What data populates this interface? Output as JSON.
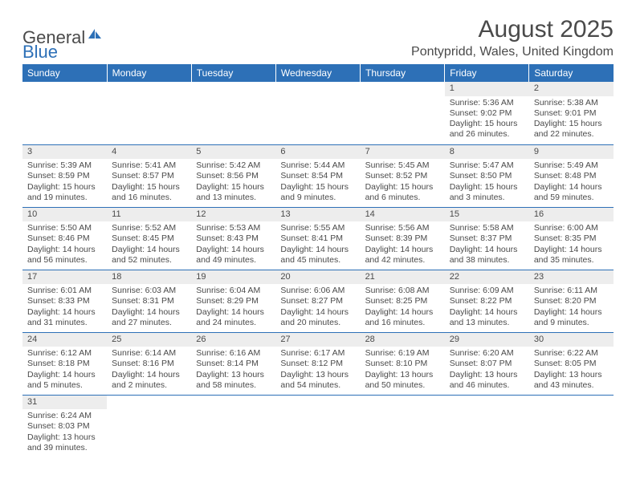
{
  "brand": {
    "part1": "General",
    "part2": "Blue"
  },
  "title": "August 2025",
  "location": "Pontypridd, Wales, United Kingdom",
  "colors": {
    "header_bg": "#2d70b7",
    "header_text": "#ffffff",
    "daynum_bg": "#ededed",
    "row_divider": "#2d70b7",
    "text": "#4a4a4a",
    "background": "#ffffff"
  },
  "weekdays": [
    "Sunday",
    "Monday",
    "Tuesday",
    "Wednesday",
    "Thursday",
    "Friday",
    "Saturday"
  ],
  "weeks": [
    [
      null,
      null,
      null,
      null,
      null,
      {
        "n": "1",
        "sr": "5:36 AM",
        "ss": "9:02 PM",
        "dl": "15 hours and 26 minutes."
      },
      {
        "n": "2",
        "sr": "5:38 AM",
        "ss": "9:01 PM",
        "dl": "15 hours and 22 minutes."
      }
    ],
    [
      {
        "n": "3",
        "sr": "5:39 AM",
        "ss": "8:59 PM",
        "dl": "15 hours and 19 minutes."
      },
      {
        "n": "4",
        "sr": "5:41 AM",
        "ss": "8:57 PM",
        "dl": "15 hours and 16 minutes."
      },
      {
        "n": "5",
        "sr": "5:42 AM",
        "ss": "8:56 PM",
        "dl": "15 hours and 13 minutes."
      },
      {
        "n": "6",
        "sr": "5:44 AM",
        "ss": "8:54 PM",
        "dl": "15 hours and 9 minutes."
      },
      {
        "n": "7",
        "sr": "5:45 AM",
        "ss": "8:52 PM",
        "dl": "15 hours and 6 minutes."
      },
      {
        "n": "8",
        "sr": "5:47 AM",
        "ss": "8:50 PM",
        "dl": "15 hours and 3 minutes."
      },
      {
        "n": "9",
        "sr": "5:49 AM",
        "ss": "8:48 PM",
        "dl": "14 hours and 59 minutes."
      }
    ],
    [
      {
        "n": "10",
        "sr": "5:50 AM",
        "ss": "8:46 PM",
        "dl": "14 hours and 56 minutes."
      },
      {
        "n": "11",
        "sr": "5:52 AM",
        "ss": "8:45 PM",
        "dl": "14 hours and 52 minutes."
      },
      {
        "n": "12",
        "sr": "5:53 AM",
        "ss": "8:43 PM",
        "dl": "14 hours and 49 minutes."
      },
      {
        "n": "13",
        "sr": "5:55 AM",
        "ss": "8:41 PM",
        "dl": "14 hours and 45 minutes."
      },
      {
        "n": "14",
        "sr": "5:56 AM",
        "ss": "8:39 PM",
        "dl": "14 hours and 42 minutes."
      },
      {
        "n": "15",
        "sr": "5:58 AM",
        "ss": "8:37 PM",
        "dl": "14 hours and 38 minutes."
      },
      {
        "n": "16",
        "sr": "6:00 AM",
        "ss": "8:35 PM",
        "dl": "14 hours and 35 minutes."
      }
    ],
    [
      {
        "n": "17",
        "sr": "6:01 AM",
        "ss": "8:33 PM",
        "dl": "14 hours and 31 minutes."
      },
      {
        "n": "18",
        "sr": "6:03 AM",
        "ss": "8:31 PM",
        "dl": "14 hours and 27 minutes."
      },
      {
        "n": "19",
        "sr": "6:04 AM",
        "ss": "8:29 PM",
        "dl": "14 hours and 24 minutes."
      },
      {
        "n": "20",
        "sr": "6:06 AM",
        "ss": "8:27 PM",
        "dl": "14 hours and 20 minutes."
      },
      {
        "n": "21",
        "sr": "6:08 AM",
        "ss": "8:25 PM",
        "dl": "14 hours and 16 minutes."
      },
      {
        "n": "22",
        "sr": "6:09 AM",
        "ss": "8:22 PM",
        "dl": "14 hours and 13 minutes."
      },
      {
        "n": "23",
        "sr": "6:11 AM",
        "ss": "8:20 PM",
        "dl": "14 hours and 9 minutes."
      }
    ],
    [
      {
        "n": "24",
        "sr": "6:12 AM",
        "ss": "8:18 PM",
        "dl": "14 hours and 5 minutes."
      },
      {
        "n": "25",
        "sr": "6:14 AM",
        "ss": "8:16 PM",
        "dl": "14 hours and 2 minutes."
      },
      {
        "n": "26",
        "sr": "6:16 AM",
        "ss": "8:14 PM",
        "dl": "13 hours and 58 minutes."
      },
      {
        "n": "27",
        "sr": "6:17 AM",
        "ss": "8:12 PM",
        "dl": "13 hours and 54 minutes."
      },
      {
        "n": "28",
        "sr": "6:19 AM",
        "ss": "8:10 PM",
        "dl": "13 hours and 50 minutes."
      },
      {
        "n": "29",
        "sr": "6:20 AM",
        "ss": "8:07 PM",
        "dl": "13 hours and 46 minutes."
      },
      {
        "n": "30",
        "sr": "6:22 AM",
        "ss": "8:05 PM",
        "dl": "13 hours and 43 minutes."
      }
    ],
    [
      {
        "n": "31",
        "sr": "6:24 AM",
        "ss": "8:03 PM",
        "dl": "13 hours and 39 minutes."
      },
      null,
      null,
      null,
      null,
      null,
      null
    ]
  ],
  "labels": {
    "sunrise": "Sunrise: ",
    "sunset": "Sunset: ",
    "daylight": "Daylight: "
  }
}
